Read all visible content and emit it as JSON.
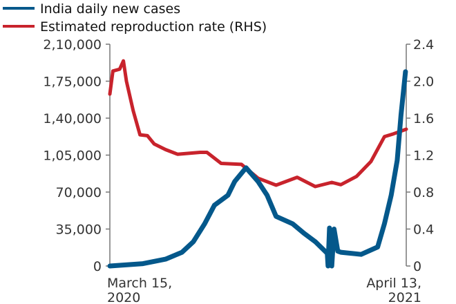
{
  "chart_data": {
    "type": "line",
    "title": "",
    "legend": [
      {
        "name": "India daily new cases",
        "color": "#04588b"
      },
      {
        "name": "Estimated reproduction rate (RHS)",
        "color": "#c8232c"
      }
    ],
    "legend_placement": "top-left",
    "x_labels": {
      "start": [
        "March 15,",
        "2020"
      ],
      "end": [
        "April 13,",
        "2021"
      ]
    },
    "x_range_days": [
      0,
      394
    ],
    "left_axis": {
      "ylim": [
        0,
        210000
      ],
      "ticks": [
        "0",
        "35,000",
        "70,000",
        "1,05,000",
        "1,40,000",
        "1,75,000",
        "2,10,000"
      ],
      "tick_values": [
        0,
        35000,
        70000,
        105000,
        140000,
        175000,
        210000
      ]
    },
    "right_axis": {
      "ylim": [
        0,
        2.4
      ],
      "ticks": [
        "0",
        "0.4",
        "0.8",
        "1.2",
        "1.6",
        "2.0",
        "2.4"
      ],
      "tick_values": [
        0,
        0.4,
        0.8,
        1.2,
        1.6,
        2.0,
        2.4
      ]
    },
    "series": [
      {
        "name": "India daily new cases",
        "axis": "left",
        "x": [
          0,
          44,
          74,
          96,
          111,
          126,
          139,
          157,
          166,
          181,
          197,
          209,
          221,
          243,
          258,
          273,
          289,
          290,
          292,
          295,
          298,
          303,
          307,
          334,
          356,
          365,
          374,
          382,
          387,
          393
        ],
        "y": [
          0,
          2200,
          6500,
          13000,
          23000,
          40000,
          57500,
          67000,
          80000,
          93000,
          80000,
          67000,
          47000,
          40000,
          31000,
          23000,
          12000,
          0,
          36000,
          0,
          35000,
          14000,
          13000,
          11000,
          18000,
          40000,
          67000,
          100000,
          143000,
          184000
        ]
      },
      {
        "name": "Estimated reproduction rate (RHS)",
        "axis": "right",
        "x": [
          0,
          4,
          13,
          18,
          22,
          31,
          40,
          50,
          59,
          74,
          90,
          120,
          129,
          148,
          175,
          197,
          221,
          249,
          273,
          295,
          307,
          328,
          347,
          365,
          377,
          394
        ],
        "y": [
          1.86,
          2.11,
          2.13,
          2.22,
          2.0,
          1.68,
          1.42,
          1.41,
          1.32,
          1.26,
          1.21,
          1.23,
          1.23,
          1.11,
          1.1,
          0.95,
          0.875,
          0.96,
          0.86,
          0.905,
          0.88,
          0.97,
          1.13,
          1.4,
          1.43,
          1.48
        ]
      }
    ]
  }
}
